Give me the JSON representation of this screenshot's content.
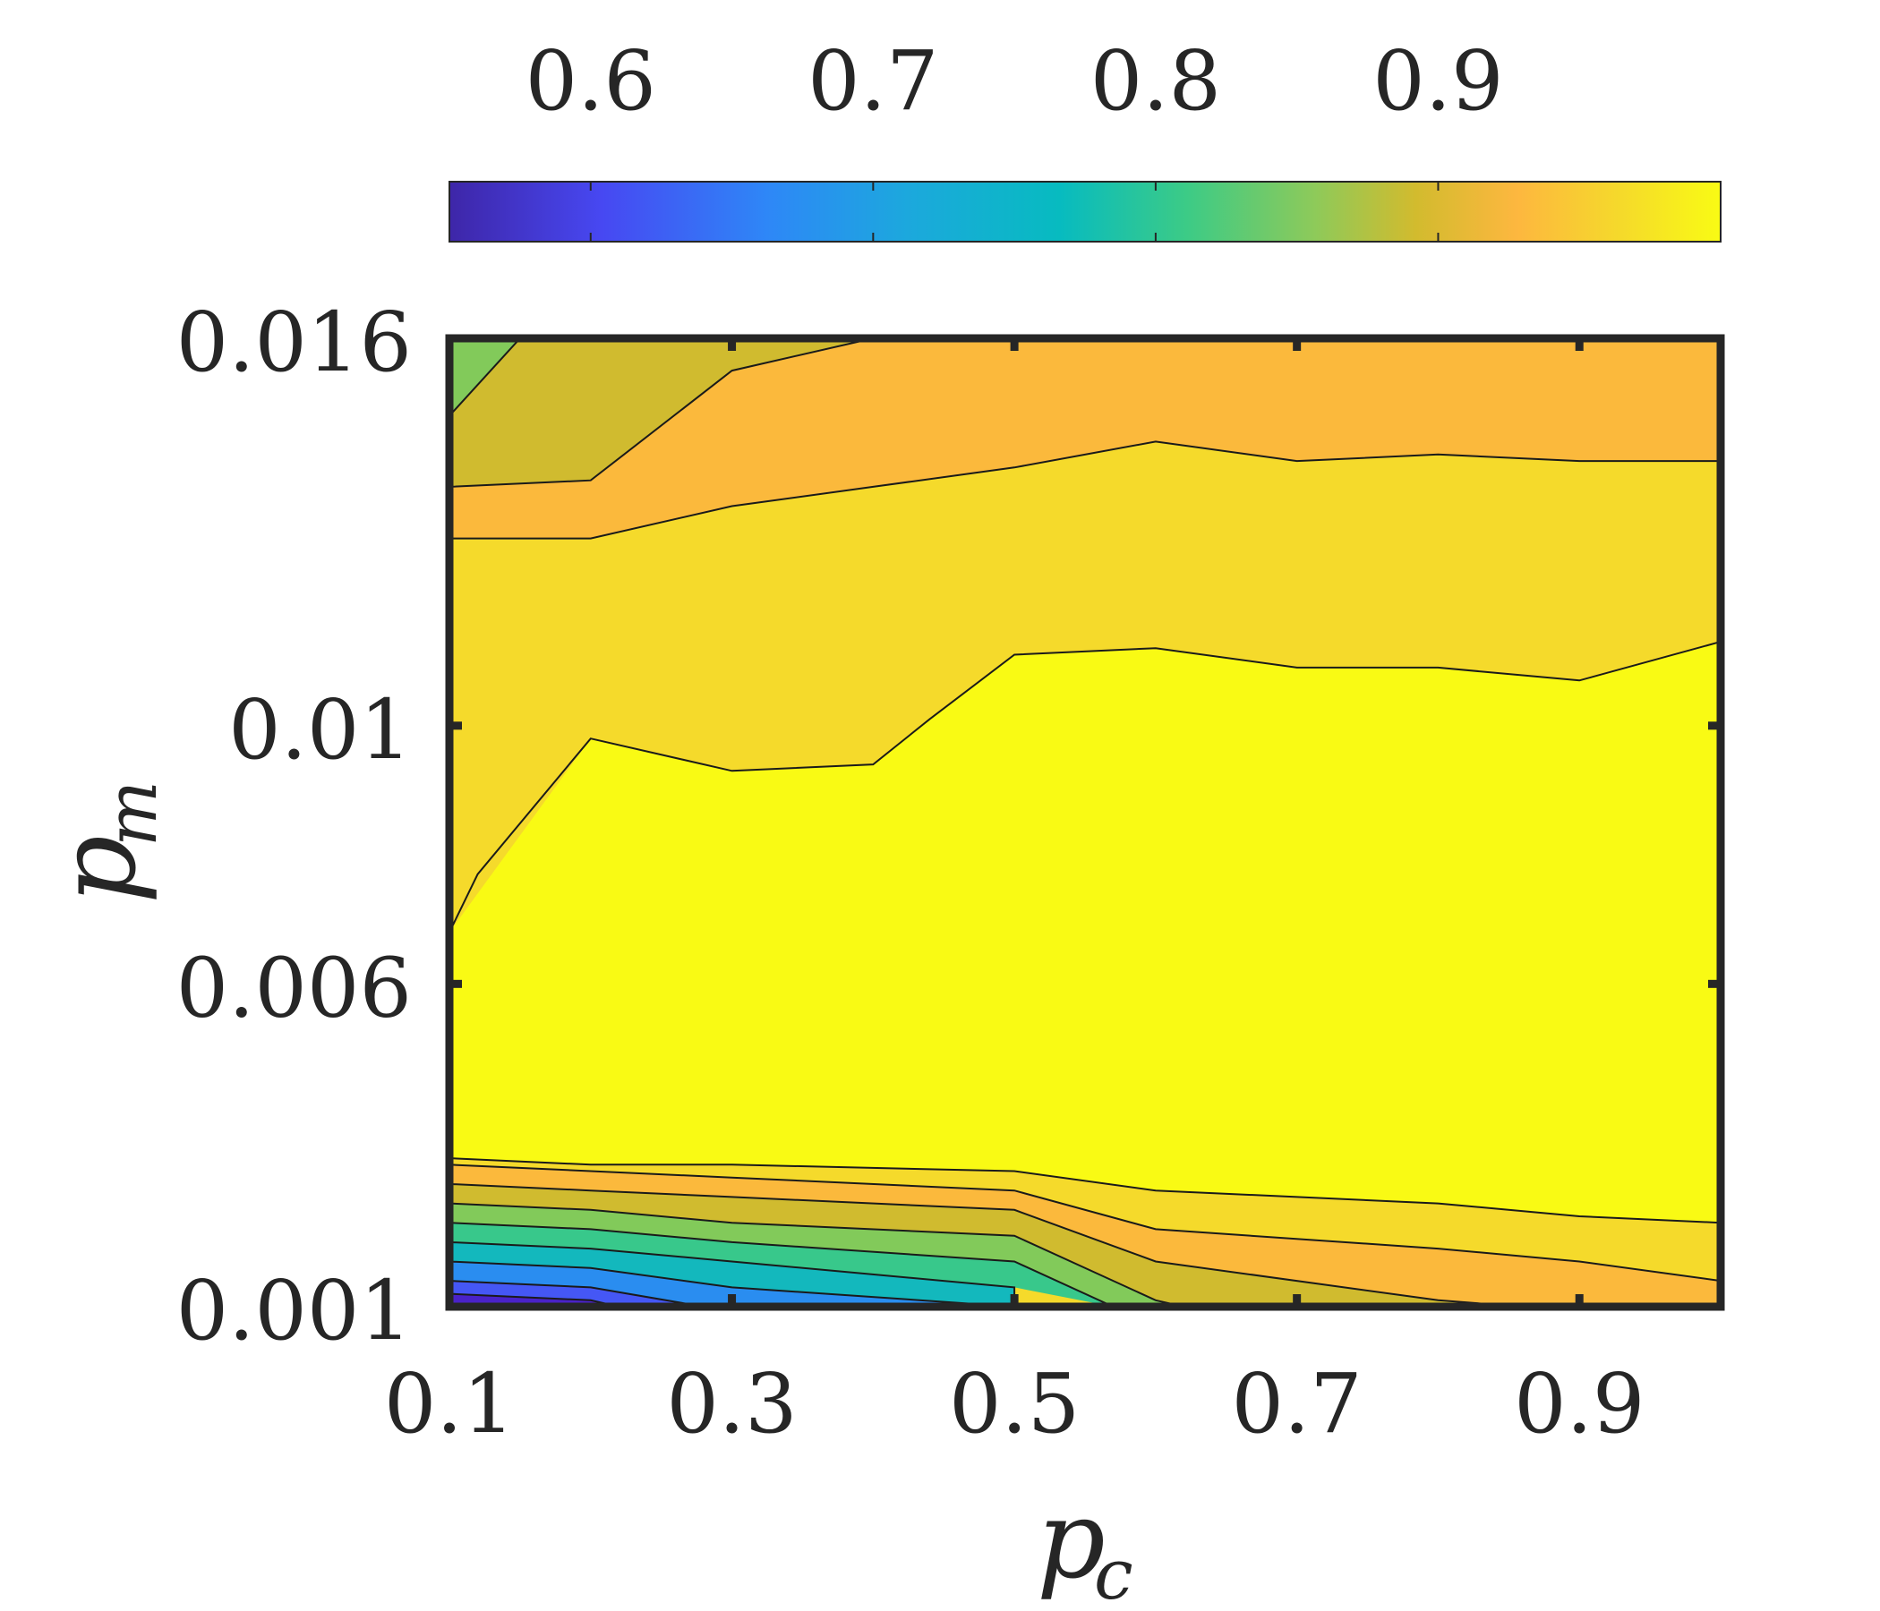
{
  "chart_data": {
    "type": "contour",
    "title": "",
    "xlabel": "p",
    "xlabel_sub": "c",
    "ylabel": "p",
    "ylabel_sub": "m",
    "xlim": [
      0.1,
      1.0
    ],
    "ylim": [
      0.001,
      0.016
    ],
    "x_ticks": [
      0.1,
      0.3,
      0.5,
      0.7,
      0.9
    ],
    "x_tick_labels": [
      "0.1",
      "0.3",
      "0.5",
      "0.7",
      "0.9"
    ],
    "y_ticks": [
      0.001,
      0.006,
      0.01,
      0.016
    ],
    "y_tick_labels": [
      "0.001",
      "0.006",
      "0.01",
      "0.016"
    ],
    "colorbar": {
      "orientation": "horizontal",
      "placement": "top",
      "range": [
        0.55,
        1.0
      ],
      "ticks": [
        0.6,
        0.7,
        0.8,
        0.9
      ],
      "tick_labels": [
        "0.6",
        "0.7",
        "0.8",
        "0.9"
      ],
      "colormap": "parula"
    },
    "levels": [
      0.55,
      0.58,
      0.61,
      0.64,
      0.67,
      0.7,
      0.73,
      0.76,
      0.79,
      0.82,
      0.86,
      0.9,
      0.94,
      0.97,
      1.0
    ],
    "regions": [
      {
        "level_value": 0.975,
        "color": "#f9fa14",
        "x": [
          0.1,
          0.2,
          0.3,
          0.4,
          0.44,
          0.5,
          0.6,
          0.7,
          0.8,
          0.9,
          1.0,
          1.0,
          0.9,
          0.8,
          0.7,
          0.6,
          0.5,
          0.3,
          0.2,
          0.1
        ],
        "y": [
          0.0068,
          0.0098,
          0.0093,
          0.0094,
          0.0101,
          0.0111,
          0.0112,
          0.0109,
          0.0109,
          0.0107,
          0.0113,
          0.0023,
          0.0024,
          0.0026,
          0.0027,
          0.0028,
          0.0031,
          0.0032,
          0.0032,
          0.0033
        ]
      },
      {
        "level_value": 0.94,
        "color": "#f5da2b",
        "note": "band around central plateau"
      },
      {
        "level_value": 0.9,
        "color": "#fbb93c"
      },
      {
        "level_value": 0.86,
        "color": "#d0bb2f"
      },
      {
        "level_value": 0.79,
        "color": "#82ca5a"
      },
      {
        "level_value": 0.73,
        "color": "#38c88b"
      },
      {
        "level_value": 0.67,
        "color": "#13b8bd"
      },
      {
        "level_value": 0.61,
        "color": "#2a8df0"
      },
      {
        "level_value": 0.58,
        "color": "#4557f5"
      },
      {
        "level_value": 0.555,
        "color": "#4a22c8"
      }
    ]
  }
}
